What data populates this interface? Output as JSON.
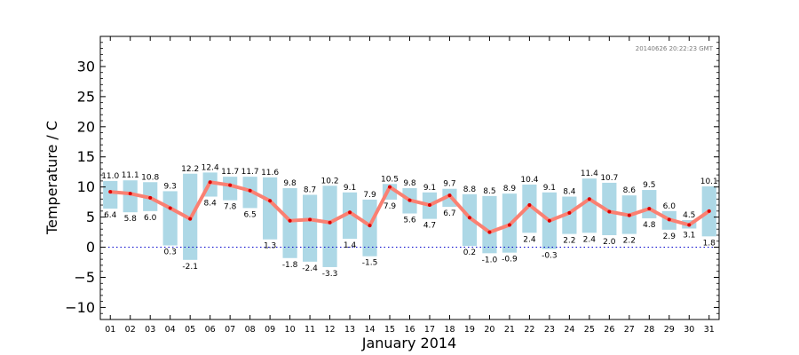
{
  "chart_data": {
    "type": "bar",
    "xlabel": "January 2014",
    "ylabel": "Temperature / C",
    "ylim": [
      -12,
      35
    ],
    "yticks": [
      -10,
      -5,
      0,
      5,
      10,
      15,
      20,
      25,
      30
    ],
    "ytick_labels": [
      "−10",
      "−5",
      "0",
      "5",
      "10",
      "15",
      "20",
      "25",
      "30"
    ],
    "timestamp": "20140626 20:22:23 GMT",
    "zero_line": true,
    "grid": false,
    "categories": [
      "01",
      "02",
      "03",
      "04",
      "05",
      "06",
      "07",
      "08",
      "09",
      "10",
      "11",
      "12",
      "13",
      "14",
      "15",
      "16",
      "17",
      "18",
      "19",
      "20",
      "21",
      "22",
      "23",
      "24",
      "25",
      "26",
      "27",
      "28",
      "29",
      "30",
      "31"
    ],
    "series": [
      {
        "role": "max",
        "values": [
          11.0,
          11.1,
          10.8,
          9.3,
          12.2,
          12.4,
          11.7,
          11.7,
          11.6,
          9.8,
          8.7,
          10.2,
          9.1,
          7.9,
          10.5,
          9.8,
          9.1,
          9.7,
          8.8,
          8.5,
          8.9,
          10.4,
          9.1,
          8.4,
          11.4,
          10.7,
          8.6,
          9.5,
          6.0,
          4.5,
          10.1
        ]
      },
      {
        "role": "min",
        "values": [
          6.4,
          5.8,
          6.0,
          0.3,
          -2.1,
          8.4,
          7.8,
          6.5,
          1.3,
          -1.8,
          -2.4,
          -3.3,
          1.4,
          -1.5,
          7.9,
          5.6,
          4.7,
          6.7,
          0.2,
          -1.0,
          -0.9,
          2.4,
          -0.3,
          2.2,
          2.4,
          2.0,
          2.2,
          4.8,
          2.9,
          3.1,
          1.8
        ]
      },
      {
        "role": "mean",
        "values": [
          9.2,
          8.9,
          8.2,
          6.5,
          4.7,
          10.8,
          10.3,
          9.4,
          7.7,
          4.4,
          4.6,
          4.1,
          5.8,
          3.6,
          10.0,
          7.8,
          7.0,
          8.6,
          4.9,
          2.5,
          3.7,
          7.0,
          4.4,
          5.7,
          8.0,
          5.9,
          5.3,
          6.4,
          4.6,
          3.7,
          6.0
        ]
      }
    ],
    "colors": {
      "range_bar": "#add8e6",
      "mean_line": "#fa8072",
      "mean_point": "#dd0000",
      "zero_line": "#0000cc",
      "axis": "#000000"
    }
  }
}
